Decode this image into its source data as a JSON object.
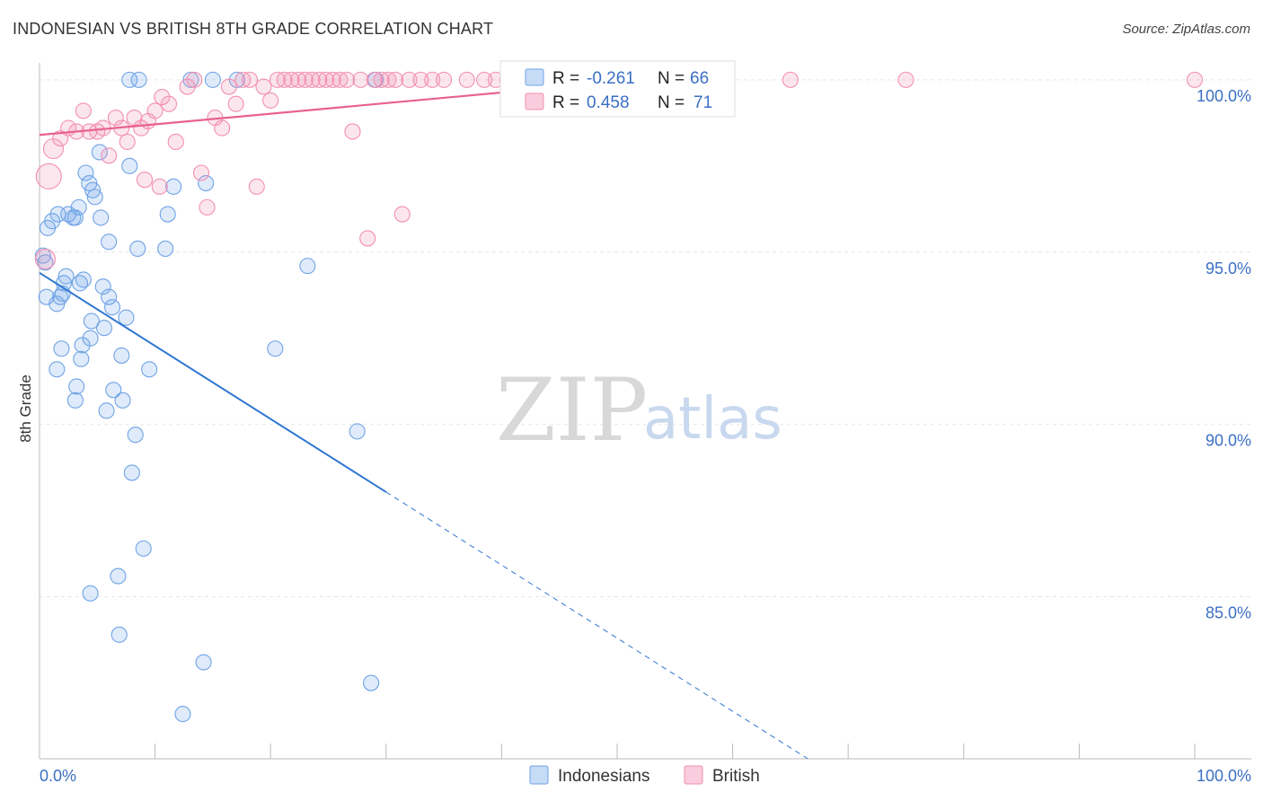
{
  "title": "INDONESIAN VS BRITISH 8TH GRADE CORRELATION CHART",
  "source": "Source: ZipAtlas.com",
  "watermark": {
    "zip": "ZIP",
    "atlas": "atlas"
  },
  "colors": {
    "indonesians": "#6fa3e6",
    "indonesians_line": "#2f76d2",
    "british": "#f28fb0",
    "british_line": "#e8618f",
    "axis_labels": "#3b6fc4",
    "grid": "#e6e6e6"
  },
  "chart_data": {
    "type": "scatter",
    "ylabel": "8th Grade",
    "xlim": [
      0,
      100
    ],
    "ylim": [
      80.3,
      100.7
    ],
    "y_ticks": [
      {
        "value": 100,
        "label": "100.0%"
      },
      {
        "value": 95,
        "label": "95.0%"
      },
      {
        "value": 90,
        "label": "90.0%"
      },
      {
        "value": 85,
        "label": "85.0%"
      }
    ],
    "x_tick_labels": {
      "min": "0.0%",
      "max": "100.0%"
    },
    "grid": true,
    "legend_position": "bottom-center",
    "stats": [
      {
        "series": "Indonesians",
        "r_label": "R =",
        "r": "-0.261",
        "n_label": "N =",
        "n": "66"
      },
      {
        "series": "British",
        "r_label": "R =",
        "r": "0.458",
        "n_label": "N =",
        "n": "71"
      }
    ],
    "series": [
      {
        "name": "Indonesians",
        "trend": {
          "x0": 0,
          "y0": 94.4,
          "x1": 100,
          "y1": 73.2,
          "solid_until": 30
        },
        "points": [
          [
            0.3,
            94.9
          ],
          [
            0.5,
            94.7
          ],
          [
            0.7,
            95.7
          ],
          [
            0.6,
            93.7
          ],
          [
            1.1,
            95.9
          ],
          [
            1.5,
            93.5
          ],
          [
            1.8,
            93.7
          ],
          [
            1.6,
            96.1
          ],
          [
            2.0,
            93.8
          ],
          [
            2.1,
            94.1
          ],
          [
            1.9,
            92.2
          ],
          [
            1.5,
            91.6
          ],
          [
            2.3,
            94.3
          ],
          [
            2.5,
            96.1
          ],
          [
            2.9,
            96.0
          ],
          [
            3.1,
            96.0
          ],
          [
            3.4,
            96.3
          ],
          [
            3.5,
            94.1
          ],
          [
            3.8,
            94.2
          ],
          [
            4.0,
            97.3
          ],
          [
            4.3,
            97.0
          ],
          [
            4.6,
            96.8
          ],
          [
            4.8,
            96.6
          ],
          [
            5.3,
            96.0
          ],
          [
            5.5,
            94.0
          ],
          [
            4.5,
            93.0
          ],
          [
            4.4,
            92.5
          ],
          [
            3.7,
            92.3
          ],
          [
            3.6,
            91.9
          ],
          [
            3.2,
            91.1
          ],
          [
            3.1,
            90.7
          ],
          [
            5.6,
            92.8
          ],
          [
            6.0,
            93.7
          ],
          [
            6.3,
            93.4
          ],
          [
            7.5,
            93.1
          ],
          [
            5.2,
            97.9
          ],
          [
            6.0,
            95.3
          ],
          [
            7.1,
            92.0
          ],
          [
            6.4,
            91.0
          ],
          [
            7.2,
            90.7
          ],
          [
            5.8,
            90.4
          ],
          [
            8.3,
            89.7
          ],
          [
            8.5,
            95.1
          ],
          [
            11.1,
            96.1
          ],
          [
            7.8,
            97.5
          ],
          [
            8.0,
            88.6
          ],
          [
            9.0,
            86.4
          ],
          [
            6.8,
            85.6
          ],
          [
            4.4,
            85.1
          ],
          [
            6.9,
            83.9
          ],
          [
            14.2,
            83.1
          ],
          [
            12.4,
            81.6
          ],
          [
            9.5,
            91.6
          ],
          [
            11.6,
            96.9
          ],
          [
            10.9,
            95.1
          ],
          [
            14.4,
            97.0
          ],
          [
            13.1,
            100.0
          ],
          [
            15.0,
            100.0
          ],
          [
            17.1,
            100.0
          ],
          [
            8.6,
            100.0
          ],
          [
            7.8,
            100.0
          ],
          [
            20.4,
            92.2
          ],
          [
            23.2,
            94.6
          ],
          [
            27.5,
            89.8
          ],
          [
            28.7,
            82.5
          ],
          [
            29.1,
            100.0
          ]
        ]
      },
      {
        "name": "British",
        "trend": {
          "x0": 0,
          "y0": 98.4,
          "x1": 52,
          "y1": 100.0
        },
        "points": [
          [
            0.5,
            94.8
          ],
          [
            0.8,
            97.2
          ],
          [
            1.2,
            98.0
          ],
          [
            1.8,
            98.3
          ],
          [
            2.5,
            98.6
          ],
          [
            3.2,
            98.5
          ],
          [
            3.8,
            99.1
          ],
          [
            4.3,
            98.5
          ],
          [
            5.0,
            98.5
          ],
          [
            5.5,
            98.6
          ],
          [
            6.0,
            97.8
          ],
          [
            6.6,
            98.9
          ],
          [
            7.1,
            98.6
          ],
          [
            7.6,
            98.2
          ],
          [
            8.2,
            98.9
          ],
          [
            8.8,
            98.6
          ],
          [
            9.4,
            98.8
          ],
          [
            10.0,
            99.1
          ],
          [
            10.6,
            99.5
          ],
          [
            11.2,
            99.3
          ],
          [
            9.1,
            97.1
          ],
          [
            10.4,
            96.9
          ],
          [
            11.8,
            98.2
          ],
          [
            12.8,
            99.8
          ],
          [
            13.4,
            100.0
          ],
          [
            14.0,
            97.3
          ],
          [
            14.5,
            96.3
          ],
          [
            15.2,
            98.9
          ],
          [
            15.8,
            98.6
          ],
          [
            16.4,
            99.8
          ],
          [
            17.0,
            99.3
          ],
          [
            17.6,
            100.0
          ],
          [
            18.2,
            100.0
          ],
          [
            18.8,
            96.9
          ],
          [
            19.4,
            99.8
          ],
          [
            20.0,
            99.4
          ],
          [
            20.6,
            100.0
          ],
          [
            21.2,
            100.0
          ],
          [
            21.8,
            100.0
          ],
          [
            22.4,
            100.0
          ],
          [
            23.0,
            100.0
          ],
          [
            23.6,
            100.0
          ],
          [
            24.2,
            100.0
          ],
          [
            24.8,
            100.0
          ],
          [
            25.4,
            100.0
          ],
          [
            26.0,
            100.0
          ],
          [
            26.6,
            100.0
          ],
          [
            27.1,
            98.5
          ],
          [
            27.8,
            100.0
          ],
          [
            28.4,
            95.4
          ],
          [
            29.0,
            100.0
          ],
          [
            29.6,
            100.0
          ],
          [
            30.2,
            100.0
          ],
          [
            30.8,
            100.0
          ],
          [
            31.4,
            96.1
          ],
          [
            32.0,
            100.0
          ],
          [
            33.0,
            100.0
          ],
          [
            34.0,
            100.0
          ],
          [
            35.0,
            100.0
          ],
          [
            37.0,
            100.0
          ],
          [
            38.5,
            100.0
          ],
          [
            39.5,
            100.0
          ],
          [
            40.5,
            100.0
          ],
          [
            41.5,
            100.0
          ],
          [
            43.0,
            100.0
          ],
          [
            48.0,
            100.0
          ],
          [
            52.0,
            100.0
          ],
          [
            58.0,
            100.0
          ],
          [
            65.0,
            100.0
          ],
          [
            75.0,
            100.0
          ],
          [
            100.0,
            100.0
          ]
        ]
      }
    ]
  }
}
